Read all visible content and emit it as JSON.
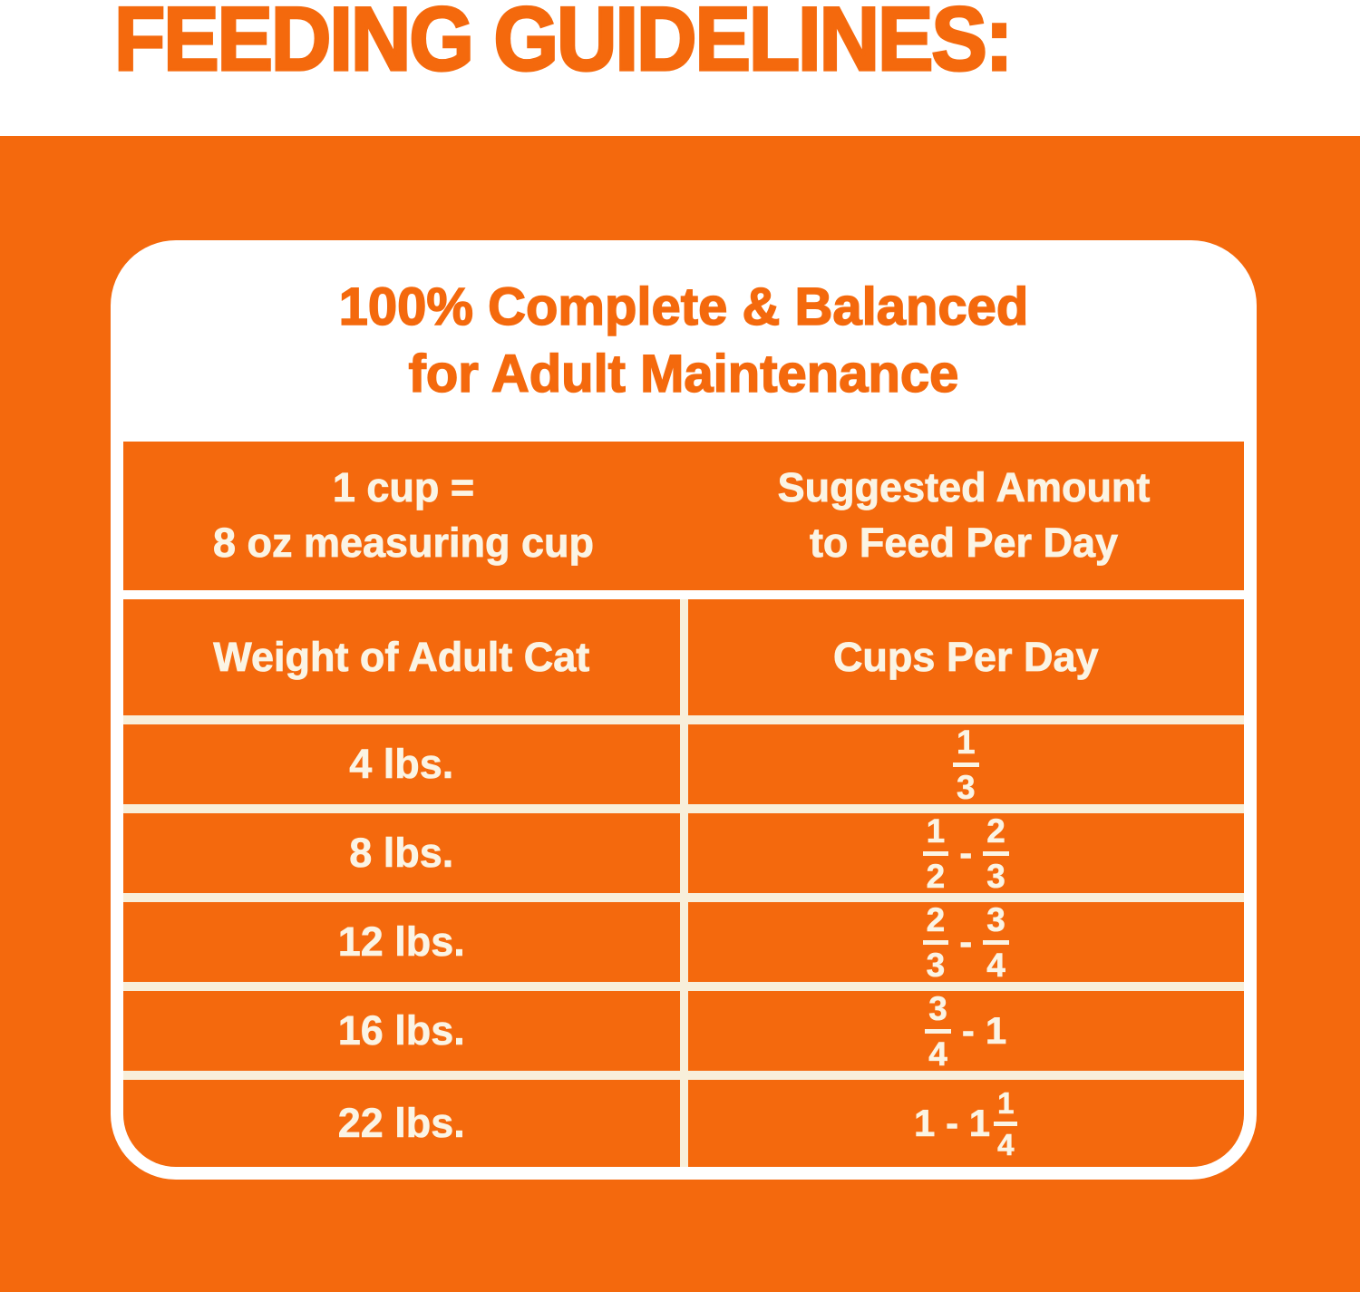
{
  "page": {
    "title": "FEEDING GUIDELINES:"
  },
  "colors": {
    "brand_orange": "#F4690D",
    "separator_cream": "#F8EFDA",
    "table_text_cream": "#FBF4E4",
    "card_background": "#FFFFFF"
  },
  "card": {
    "heading_line1": "100% Complete & Balanced",
    "heading_line2": "for Adult Maintenance",
    "band": {
      "left_line1": "1 cup =",
      "left_line2": "8 oz measuring cup",
      "right_line1": "Suggested Amount",
      "right_line2": "to Feed Per Day"
    },
    "table": {
      "col1_header": "Weight of Adult Cat",
      "col2_header": "Cups Per Day",
      "rows": [
        {
          "weight": "4 lbs.",
          "cups": [
            {
              "frac": [
                "1",
                "3"
              ]
            }
          ]
        },
        {
          "weight": "8 lbs.",
          "cups": [
            {
              "frac": [
                "1",
                "2"
              ]
            },
            {
              "text": "-"
            },
            {
              "frac": [
                "2",
                "3"
              ]
            }
          ]
        },
        {
          "weight": "12 lbs.",
          "cups": [
            {
              "frac": [
                "2",
                "3"
              ]
            },
            {
              "text": "-"
            },
            {
              "frac": [
                "3",
                "4"
              ]
            }
          ]
        },
        {
          "weight": "16 lbs.",
          "cups": [
            {
              "frac": [
                "3",
                "4"
              ]
            },
            {
              "text": "-"
            },
            {
              "text": "1"
            }
          ]
        },
        {
          "weight": "22 lbs.",
          "cups": [
            {
              "text": "1 - 1"
            },
            {
              "frac": [
                "1",
                "4"
              ],
              "tight": true
            }
          ]
        }
      ]
    }
  }
}
